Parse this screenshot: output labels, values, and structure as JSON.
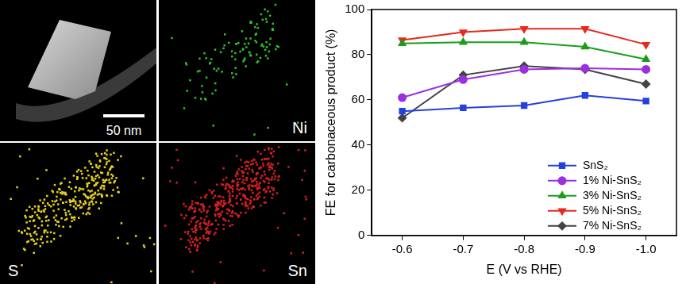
{
  "image": {
    "scale_bar": "50 nm"
  },
  "maps": [
    {
      "element": "Ni",
      "color": "#2fc02f"
    },
    {
      "element": "S",
      "color": "#e6d21e"
    },
    {
      "element": "Sn",
      "color": "#d42020"
    }
  ],
  "chart_data": {
    "type": "line",
    "x_label": "E (V vs RHE)",
    "y_label": "FE for carbonaceous product (%)",
    "x": [
      -0.6,
      -0.7,
      -0.8,
      -0.9,
      -1.0
    ],
    "xlim": [
      -0.55,
      -1.05
    ],
    "xticks": [
      -0.6,
      -0.7,
      -0.8,
      -0.9,
      {
        "value": -1.0,
        "label": "-1.0"
      }
    ],
    "ylim": [
      0,
      100
    ],
    "yticks": [
      0,
      20,
      40,
      60,
      80,
      100
    ],
    "grid": false,
    "legend": "lower right",
    "series": [
      {
        "name": "SnS₂",
        "color": "#2440e0",
        "marker": "square",
        "values": [
          55,
          56.5,
          57.5,
          62,
          59.5
        ]
      },
      {
        "name": "1% Ni-SnS₂",
        "color": "#9b30e0",
        "marker": "circle",
        "values": [
          61,
          69,
          73.5,
          74,
          73.5
        ]
      },
      {
        "name": "3% Ni-SnS₂",
        "color": "#1a9e1a",
        "marker": "triangle",
        "values": [
          85,
          85.5,
          85.5,
          83.5,
          78
        ]
      },
      {
        "name": "5% Ni-SnS₂",
        "color": "#e8281e",
        "marker": "triangle_down",
        "values": [
          86.5,
          90,
          91.5,
          91.5,
          84.5
        ]
      },
      {
        "name": "7% Ni-SnS₂",
        "color": "#444444",
        "marker": "diamond",
        "values": [
          52,
          71,
          75,
          73.5,
          67
        ]
      }
    ]
  }
}
